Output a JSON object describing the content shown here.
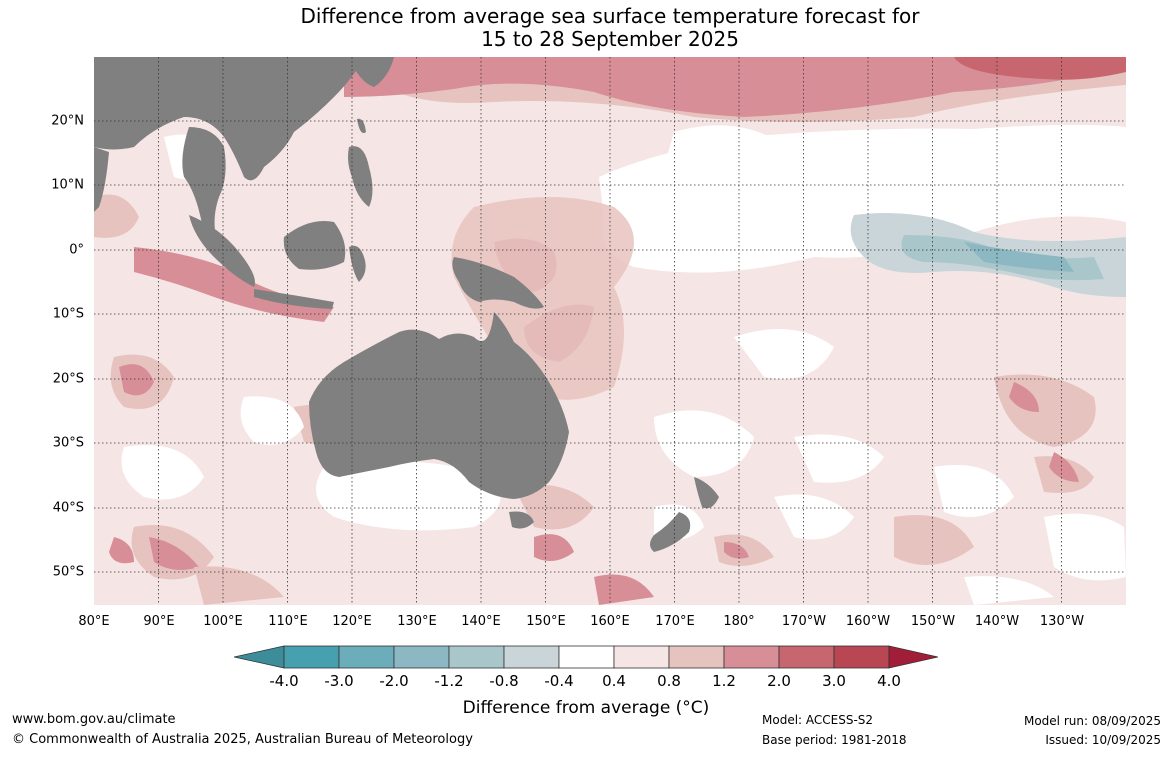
{
  "title_line1": "Difference from average sea surface temperature forecast for",
  "title_line2": "15 to 28 September 2025",
  "lat_labels": [
    "20°N",
    "10°N",
    "0°",
    "10°S",
    "20°S",
    "30°S",
    "40°S",
    "50°S"
  ],
  "lon_labels": [
    "80°E",
    "90°E",
    "100°E",
    "110°E",
    "120°E",
    "130°E",
    "140°E",
    "150°E",
    "160°E",
    "170°E",
    "180°",
    "170°W",
    "160°W",
    "150°W",
    "140°W",
    "130°W"
  ],
  "colorbar": {
    "ticks": [
      "-4.0",
      "-3.0",
      "-2.0",
      "-1.2",
      "-0.8",
      "-0.4",
      "0.4",
      "0.8",
      "1.2",
      "2.0",
      "3.0",
      "4.0"
    ],
    "colors": [
      "#3c8c99",
      "#47a0b0",
      "#6badbb",
      "#8cb8c3",
      "#a9c6cb",
      "#c9d5d9",
      "#ffffff",
      "#f5e6e5",
      "#e7c3c0",
      "#d88e96",
      "#c86670",
      "#b84653",
      "#a21e38"
    ],
    "label": "Difference from average (°C)"
  },
  "footer": {
    "website": "www.bom.gov.au/climate",
    "copyright": "© Commonwealth of Australia 2025, Australian Bureau of Meteorology",
    "model": "Model: ACCESS-S2",
    "base_period": "Base period: 1981-2018",
    "model_run": "Model run: 08/09/2025",
    "issued": "Issued: 10/09/2025"
  },
  "map_colors": {
    "land": "#808080",
    "grid": "#333333"
  }
}
